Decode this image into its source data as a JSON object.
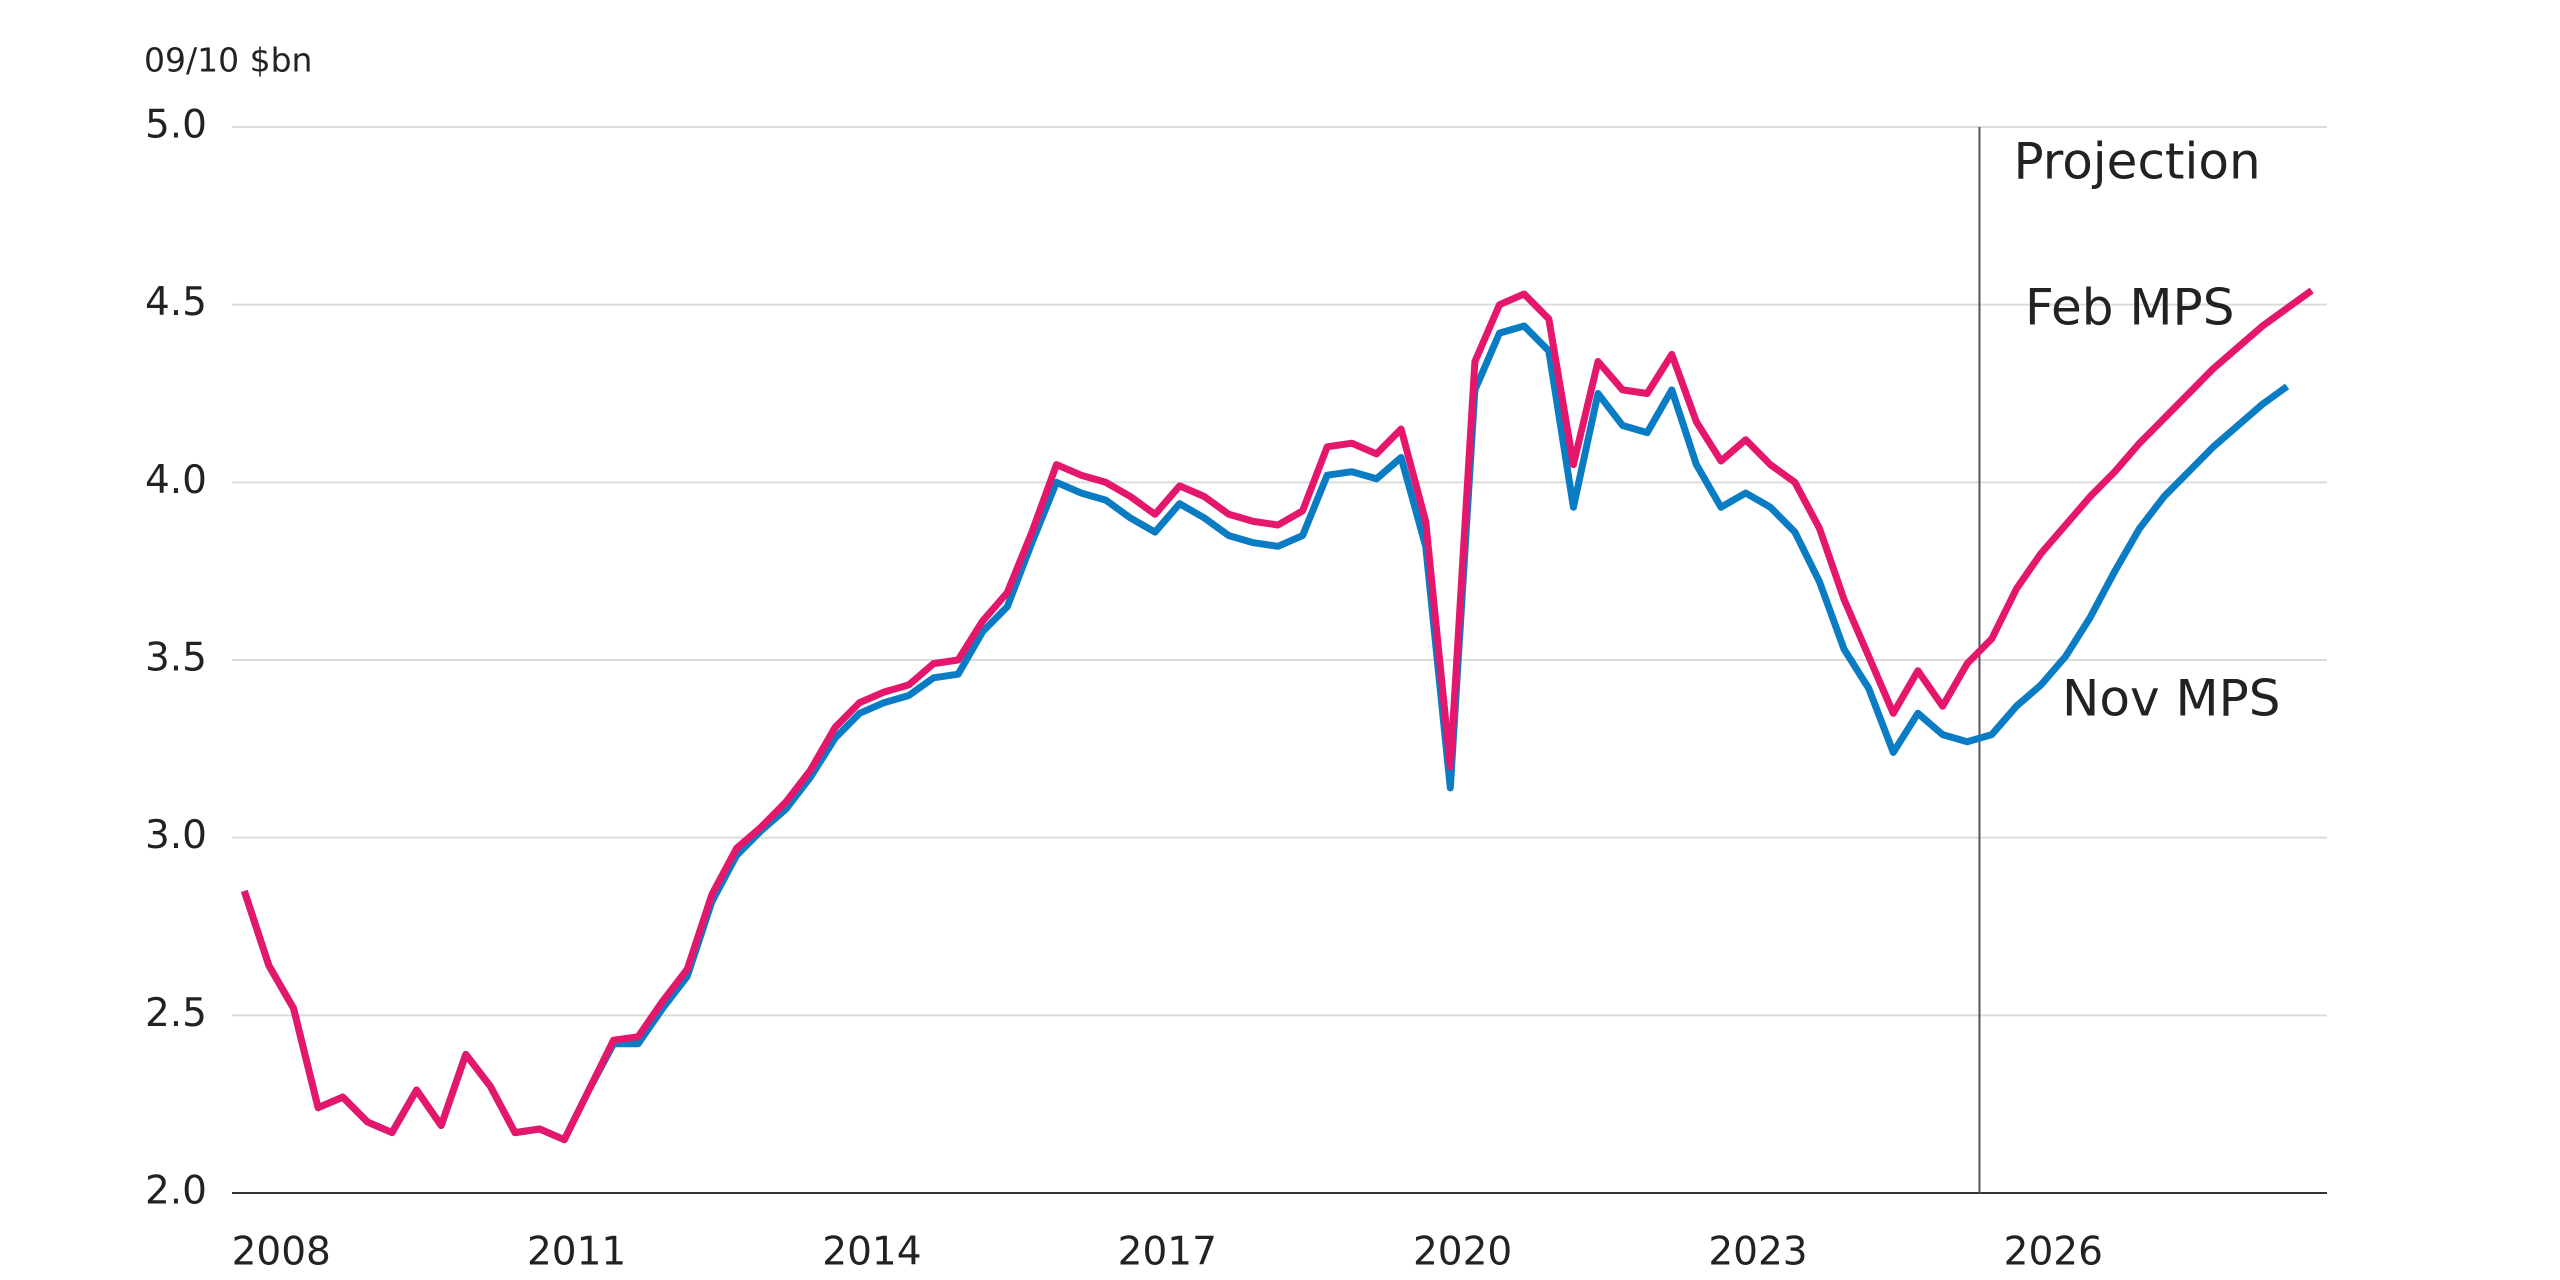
{
  "chart_data": {
    "type": "line",
    "y_unit_label": "09/10 $bn",
    "annotation": "Projection",
    "projection_start": 2025.75,
    "x": [
      2008.125,
      2008.375,
      2008.625,
      2008.875,
      2009.125,
      2009.375,
      2009.625,
      2009.875,
      2010.125,
      2010.375,
      2010.625,
      2010.875,
      2011.125,
      2011.375,
      2011.625,
      2011.875,
      2012.125,
      2012.375,
      2012.625,
      2012.875,
      2013.125,
      2013.375,
      2013.625,
      2013.875,
      2014.125,
      2014.375,
      2014.625,
      2014.875,
      2015.125,
      2015.375,
      2015.625,
      2015.875,
      2016.125,
      2016.375,
      2016.625,
      2016.875,
      2017.125,
      2017.375,
      2017.625,
      2017.875,
      2018.125,
      2018.375,
      2018.625,
      2018.875,
      2019.125,
      2019.375,
      2019.625,
      2019.875,
      2020.125,
      2020.375,
      2020.625,
      2020.875,
      2021.125,
      2021.375,
      2021.625,
      2021.875,
      2022.125,
      2022.375,
      2022.625,
      2022.875,
      2023.125,
      2023.375,
      2023.625,
      2023.875,
      2024.125,
      2024.375,
      2024.625,
      2024.875,
      2025.125,
      2025.375,
      2025.625,
      2025.875,
      2026.125,
      2026.375,
      2026.625,
      2026.875,
      2027.125,
      2027.375,
      2027.625,
      2027.875,
      2028.125,
      2028.375,
      2028.625,
      2028.875,
      2029.125
    ],
    "series": [
      {
        "name": "Nov MPS",
        "color": "#0a7cc4",
        "values": [
          2.85,
          2.64,
          2.52,
          2.24,
          2.27,
          2.2,
          2.17,
          2.29,
          2.19,
          2.39,
          2.3,
          2.17,
          2.18,
          2.15,
          2.29,
          2.42,
          2.42,
          2.52,
          2.61,
          2.82,
          2.95,
          3.02,
          3.08,
          3.17,
          3.28,
          3.35,
          3.38,
          3.4,
          3.45,
          3.46,
          3.58,
          3.65,
          3.83,
          4.0,
          3.97,
          3.95,
          3.9,
          3.86,
          3.94,
          3.9,
          3.85,
          3.83,
          3.82,
          3.85,
          4.02,
          4.03,
          4.01,
          4.07,
          3.82,
          3.14,
          4.26,
          4.42,
          4.44,
          4.37,
          3.93,
          4.25,
          4.16,
          4.14,
          4.26,
          4.05,
          3.93,
          3.97,
          3.93,
          3.86,
          3.72,
          3.53,
          3.42,
          3.24,
          3.35,
          3.29,
          3.27,
          3.29,
          3.37,
          3.43,
          3.51,
          3.62,
          3.75,
          3.87,
          3.96,
          4.03,
          4.1,
          4.16,
          4.22,
          4.27,
          null
        ]
      },
      {
        "name": "Feb MPS",
        "color": "#e5176c",
        "values": [
          2.85,
          2.64,
          2.52,
          2.24,
          2.27,
          2.2,
          2.17,
          2.29,
          2.19,
          2.39,
          2.3,
          2.17,
          2.18,
          2.15,
          2.29,
          2.43,
          2.44,
          2.54,
          2.63,
          2.84,
          2.97,
          3.03,
          3.1,
          3.19,
          3.31,
          3.38,
          3.41,
          3.43,
          3.49,
          3.5,
          3.61,
          3.69,
          3.86,
          4.05,
          4.02,
          4.0,
          3.96,
          3.91,
          3.99,
          3.96,
          3.91,
          3.89,
          3.88,
          3.92,
          4.1,
          4.11,
          4.08,
          4.15,
          3.89,
          3.2,
          4.34,
          4.5,
          4.53,
          4.46,
          4.05,
          4.34,
          4.26,
          4.25,
          4.36,
          4.17,
          4.06,
          4.12,
          4.05,
          4.0,
          3.87,
          3.67,
          3.51,
          3.35,
          3.47,
          3.37,
          3.49,
          3.56,
          3.7,
          3.8,
          3.88,
          3.96,
          4.03,
          4.11,
          4.18,
          4.25,
          4.32,
          4.38,
          4.44,
          4.49,
          4.54
        ]
      }
    ],
    "xlim": [
      2008,
      2029.28
    ],
    "xticks": [
      {
        "value": 2008.5,
        "label": "2008"
      },
      {
        "value": 2011.5,
        "label": "2011"
      },
      {
        "value": 2014.5,
        "label": "2014"
      },
      {
        "value": 2017.5,
        "label": "2017"
      },
      {
        "value": 2020.5,
        "label": "2020"
      },
      {
        "value": 2023.5,
        "label": "2023"
      },
      {
        "value": 2026.5,
        "label": "2026"
      }
    ],
    "ylim": [
      2.0,
      5.0
    ],
    "yticks": [
      {
        "value": 2.0,
        "label": "2.0"
      },
      {
        "value": 2.5,
        "label": "2.5"
      },
      {
        "value": 3.0,
        "label": "3.0"
      },
      {
        "value": 3.5,
        "label": "3.5"
      },
      {
        "value": 4.0,
        "label": "4.0"
      },
      {
        "value": 4.5,
        "label": "4.5"
      },
      {
        "value": 5.0,
        "label": "5.0"
      }
    ],
    "grid": true
  }
}
